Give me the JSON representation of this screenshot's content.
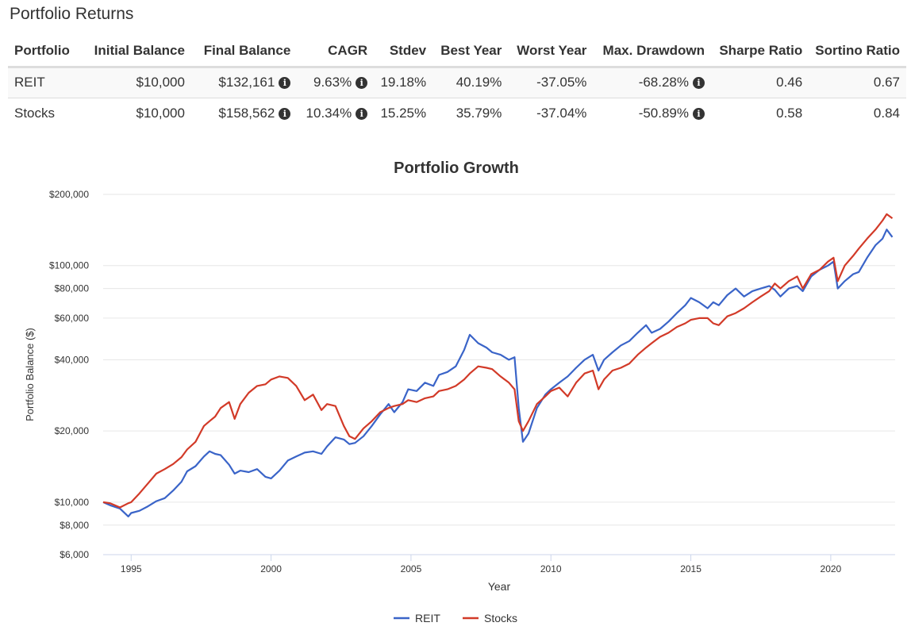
{
  "section_title": "Portfolio Returns",
  "table": {
    "headers": [
      "Portfolio",
      "Initial Balance",
      "Final Balance",
      "CAGR",
      "Stdev",
      "Best Year",
      "Worst Year",
      "Max. Drawdown",
      "Sharpe Ratio",
      "Sortino Ratio"
    ],
    "rows": [
      {
        "portfolio": "REIT",
        "initial": "$10,000",
        "final": "$132,161",
        "cagr": "9.63%",
        "stdev": "19.18%",
        "best": "40.19%",
        "worst": "-37.05%",
        "drawdown": "-68.28%",
        "sharpe": "0.46",
        "sortino": "0.67"
      },
      {
        "portfolio": "Stocks",
        "initial": "$10,000",
        "final": "$158,562",
        "cagr": "10.34%",
        "stdev": "15.25%",
        "best": "35.79%",
        "worst": "-37.04%",
        "drawdown": "-50.89%",
        "sharpe": "0.58",
        "sortino": "0.84"
      }
    ],
    "info_icon": "info-icon",
    "info_glyph": "i"
  },
  "chart_data": {
    "type": "line",
    "title": "Portfolio Growth",
    "xlabel": "Year",
    "ylabel": "Portfolio Balance ($)",
    "y_scale": "log",
    "xlim": [
      1994,
      2022.3
    ],
    "ylim": [
      6000,
      200000
    ],
    "x_ticks": [
      1995,
      2000,
      2005,
      2010,
      2015,
      2020
    ],
    "x_tick_labels": [
      "1995",
      "2000",
      "2005",
      "2010",
      "2015",
      "2020"
    ],
    "y_ticks": [
      6000,
      8000,
      10000,
      20000,
      40000,
      60000,
      80000,
      100000,
      200000
    ],
    "y_tick_labels": [
      "$6,000",
      "$8,000",
      "$10,000",
      "$20,000",
      "$40,000",
      "$60,000",
      "$80,000",
      "$100,000",
      "$200,000"
    ],
    "grid": true,
    "legend_position": "bottom-center",
    "series": [
      {
        "name": "REIT",
        "color": "#3a64c8",
        "points": [
          [
            1994.0,
            10000
          ],
          [
            1994.25,
            9700
          ],
          [
            1994.6,
            9400
          ],
          [
            1994.9,
            8700
          ],
          [
            1995.0,
            9000
          ],
          [
            1995.3,
            9200
          ],
          [
            1995.6,
            9600
          ],
          [
            1995.9,
            10100
          ],
          [
            1996.2,
            10400
          ],
          [
            1996.5,
            11200
          ],
          [
            1996.8,
            12200
          ],
          [
            1997.0,
            13500
          ],
          [
            1997.3,
            14200
          ],
          [
            1997.6,
            15600
          ],
          [
            1997.8,
            16400
          ],
          [
            1998.0,
            16000
          ],
          [
            1998.2,
            15800
          ],
          [
            1998.5,
            14400
          ],
          [
            1998.7,
            13200
          ],
          [
            1998.9,
            13600
          ],
          [
            1999.2,
            13400
          ],
          [
            1999.5,
            13800
          ],
          [
            1999.8,
            12800
          ],
          [
            2000.0,
            12600
          ],
          [
            2000.3,
            13600
          ],
          [
            2000.6,
            15000
          ],
          [
            2000.9,
            15600
          ],
          [
            2001.2,
            16200
          ],
          [
            2001.5,
            16400
          ],
          [
            2001.8,
            16000
          ],
          [
            2002.0,
            17200
          ],
          [
            2002.3,
            18800
          ],
          [
            2002.6,
            18400
          ],
          [
            2002.8,
            17600
          ],
          [
            2003.0,
            17800
          ],
          [
            2003.3,
            19000
          ],
          [
            2003.6,
            21000
          ],
          [
            2003.9,
            23500
          ],
          [
            2004.2,
            26000
          ],
          [
            2004.4,
            24000
          ],
          [
            2004.7,
            26500
          ],
          [
            2004.9,
            30000
          ],
          [
            2005.2,
            29500
          ],
          [
            2005.5,
            32000
          ],
          [
            2005.8,
            31000
          ],
          [
            2006.0,
            34500
          ],
          [
            2006.3,
            35500
          ],
          [
            2006.6,
            37500
          ],
          [
            2006.9,
            44000
          ],
          [
            2007.1,
            51000
          ],
          [
            2007.4,
            47000
          ],
          [
            2007.7,
            45000
          ],
          [
            2007.9,
            43000
          ],
          [
            2008.2,
            42000
          ],
          [
            2008.5,
            40000
          ],
          [
            2008.7,
            41000
          ],
          [
            2008.85,
            25000
          ],
          [
            2009.0,
            18000
          ],
          [
            2009.2,
            19500
          ],
          [
            2009.5,
            25000
          ],
          [
            2009.8,
            28500
          ],
          [
            2010.0,
            30000
          ],
          [
            2010.3,
            32000
          ],
          [
            2010.6,
            34000
          ],
          [
            2010.9,
            37000
          ],
          [
            2011.2,
            40000
          ],
          [
            2011.5,
            42000
          ],
          [
            2011.7,
            36000
          ],
          [
            2011.9,
            40000
          ],
          [
            2012.2,
            43000
          ],
          [
            2012.5,
            46000
          ],
          [
            2012.8,
            48000
          ],
          [
            2013.1,
            52000
          ],
          [
            2013.4,
            56000
          ],
          [
            2013.6,
            52000
          ],
          [
            2013.9,
            54000
          ],
          [
            2014.2,
            58000
          ],
          [
            2014.5,
            63000
          ],
          [
            2014.8,
            68000
          ],
          [
            2015.0,
            73000
          ],
          [
            2015.3,
            70000
          ],
          [
            2015.6,
            66000
          ],
          [
            2015.8,
            70000
          ],
          [
            2016.0,
            68000
          ],
          [
            2016.3,
            75000
          ],
          [
            2016.6,
            80000
          ],
          [
            2016.9,
            74000
          ],
          [
            2017.2,
            78000
          ],
          [
            2017.5,
            80000
          ],
          [
            2017.8,
            82000
          ],
          [
            2018.0,
            79000
          ],
          [
            2018.2,
            74000
          ],
          [
            2018.5,
            80000
          ],
          [
            2018.8,
            82000
          ],
          [
            2019.0,
            78000
          ],
          [
            2019.3,
            90000
          ],
          [
            2019.6,
            96000
          ],
          [
            2019.9,
            100000
          ],
          [
            2020.1,
            104000
          ],
          [
            2020.25,
            80000
          ],
          [
            2020.5,
            86000
          ],
          [
            2020.8,
            92000
          ],
          [
            2021.0,
            94000
          ],
          [
            2021.3,
            108000
          ],
          [
            2021.6,
            122000
          ],
          [
            2021.85,
            130000
          ],
          [
            2022.0,
            142000
          ],
          [
            2022.2,
            132000
          ]
        ]
      },
      {
        "name": "Stocks",
        "color": "#d23a28",
        "points": [
          [
            1994.0,
            10000
          ],
          [
            1994.25,
            9900
          ],
          [
            1994.6,
            9500
          ],
          [
            1994.9,
            9900
          ],
          [
            1995.0,
            10000
          ],
          [
            1995.3,
            10900
          ],
          [
            1995.6,
            12000
          ],
          [
            1995.9,
            13200
          ],
          [
            1996.2,
            13800
          ],
          [
            1996.5,
            14500
          ],
          [
            1996.8,
            15500
          ],
          [
            1997.0,
            16700
          ],
          [
            1997.3,
            18000
          ],
          [
            1997.6,
            21000
          ],
          [
            1997.8,
            22000
          ],
          [
            1998.0,
            23000
          ],
          [
            1998.2,
            25000
          ],
          [
            1998.5,
            26500
          ],
          [
            1998.7,
            22500
          ],
          [
            1998.9,
            26000
          ],
          [
            1999.2,
            29000
          ],
          [
            1999.5,
            31000
          ],
          [
            1999.8,
            31500
          ],
          [
            2000.0,
            33000
          ],
          [
            2000.3,
            34000
          ],
          [
            2000.6,
            33500
          ],
          [
            2000.9,
            31000
          ],
          [
            2001.2,
            27000
          ],
          [
            2001.5,
            28500
          ],
          [
            2001.8,
            24500
          ],
          [
            2002.0,
            26000
          ],
          [
            2002.3,
            25500
          ],
          [
            2002.6,
            21000
          ],
          [
            2002.8,
            19000
          ],
          [
            2003.0,
            18500
          ],
          [
            2003.3,
            20500
          ],
          [
            2003.6,
            22000
          ],
          [
            2003.9,
            24000
          ],
          [
            2004.2,
            25000
          ],
          [
            2004.4,
            25500
          ],
          [
            2004.7,
            26000
          ],
          [
            2004.9,
            27000
          ],
          [
            2005.2,
            26500
          ],
          [
            2005.5,
            27500
          ],
          [
            2005.8,
            28000
          ],
          [
            2006.0,
            29500
          ],
          [
            2006.3,
            30000
          ],
          [
            2006.6,
            31000
          ],
          [
            2006.9,
            33000
          ],
          [
            2007.1,
            35000
          ],
          [
            2007.4,
            37500
          ],
          [
            2007.7,
            37000
          ],
          [
            2007.9,
            36500
          ],
          [
            2008.2,
            34000
          ],
          [
            2008.5,
            32000
          ],
          [
            2008.7,
            30000
          ],
          [
            2008.85,
            22000
          ],
          [
            2009.0,
            20000
          ],
          [
            2009.2,
            22000
          ],
          [
            2009.5,
            26000
          ],
          [
            2009.8,
            28000
          ],
          [
            2010.0,
            29500
          ],
          [
            2010.3,
            30500
          ],
          [
            2010.6,
            28000
          ],
          [
            2010.9,
            32000
          ],
          [
            2011.2,
            35000
          ],
          [
            2011.5,
            36000
          ],
          [
            2011.7,
            30000
          ],
          [
            2011.9,
            33000
          ],
          [
            2012.2,
            36000
          ],
          [
            2012.5,
            37000
          ],
          [
            2012.8,
            38500
          ],
          [
            2013.1,
            42000
          ],
          [
            2013.4,
            45000
          ],
          [
            2013.6,
            47000
          ],
          [
            2013.9,
            50000
          ],
          [
            2014.2,
            52000
          ],
          [
            2014.5,
            55000
          ],
          [
            2014.8,
            57000
          ],
          [
            2015.0,
            59000
          ],
          [
            2015.3,
            60000
          ],
          [
            2015.6,
            60000
          ],
          [
            2015.8,
            57000
          ],
          [
            2016.0,
            56000
          ],
          [
            2016.3,
            61000
          ],
          [
            2016.6,
            63000
          ],
          [
            2016.9,
            66000
          ],
          [
            2017.2,
            70000
          ],
          [
            2017.5,
            74000
          ],
          [
            2017.8,
            78000
          ],
          [
            2018.0,
            84000
          ],
          [
            2018.2,
            80000
          ],
          [
            2018.5,
            86000
          ],
          [
            2018.8,
            90000
          ],
          [
            2019.0,
            80000
          ],
          [
            2019.3,
            92000
          ],
          [
            2019.6,
            96000
          ],
          [
            2019.9,
            104000
          ],
          [
            2020.1,
            108000
          ],
          [
            2020.25,
            86000
          ],
          [
            2020.5,
            100000
          ],
          [
            2020.8,
            110000
          ],
          [
            2021.0,
            118000
          ],
          [
            2021.3,
            130000
          ],
          [
            2021.6,
            142000
          ],
          [
            2021.85,
            155000
          ],
          [
            2022.0,
            165000
          ],
          [
            2022.2,
            158562
          ]
        ]
      }
    ]
  }
}
